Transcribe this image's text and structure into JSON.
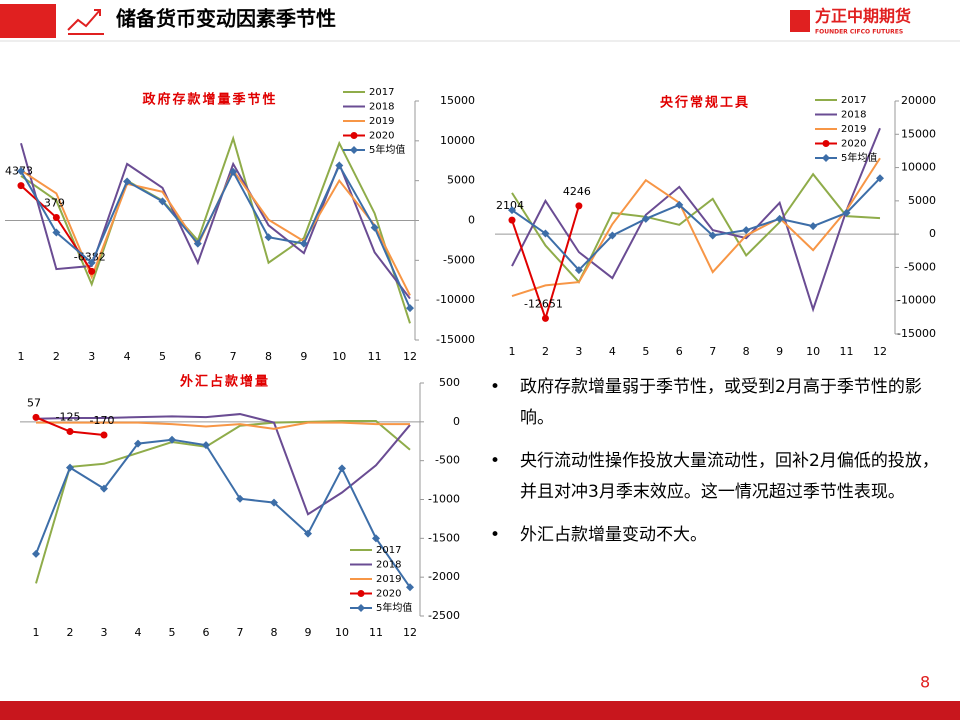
{
  "header": {
    "title": "储备货币变动因素季节性",
    "logo": "方正中期期货",
    "logo_en": "FOUNDER CIFCO FUTURES"
  },
  "bullets": [
    "政府存款增量弱于季节性，或受到2月高于季节性的影响。",
    "央行流动性操作投放大量流动性，回补2月偏低的投放，并且对冲3月季末效应。这一情况超过季节性表现。",
    "外汇占款增量变动不大。"
  ],
  "page_number": "8",
  "chart_data": [
    {
      "type": "line",
      "title": "政府存款增量季节性",
      "categories": [
        "1",
        "2",
        "3",
        "4",
        "5",
        "6",
        "7",
        "8",
        "9",
        "10",
        "11",
        "12"
      ],
      "ylim": [
        -15000,
        15000
      ],
      "yticks": [
        -15000,
        -10000,
        -5000,
        0,
        5000,
        10000,
        15000
      ],
      "legend": "upper right",
      "series": [
        {
          "name": "2017",
          "color": "#8fac4a",
          "values": [
            5600,
            2500,
            -8000,
            5000,
            2500,
            -2500,
            10300,
            -5300,
            -2200,
            9700,
            900,
            -12900
          ]
        },
        {
          "name": "2018",
          "color": "#6a4c93",
          "values": [
            9700,
            -6100,
            -5700,
            7100,
            4100,
            -5300,
            7100,
            -600,
            -4100,
            7100,
            -4000,
            -9800
          ]
        },
        {
          "name": "2019",
          "color": "#f79646",
          "values": [
            6300,
            3400,
            -7100,
            4600,
            3600,
            -3100,
            6300,
            100,
            -2600,
            5000,
            -600,
            -9400
          ]
        },
        {
          "name": "2020",
          "color": "#e00000",
          "marker": "circle",
          "data_labels": true,
          "values": [
            4373,
            379,
            -6382,
            null,
            null,
            null,
            null,
            null,
            null,
            null,
            null,
            null
          ]
        },
        {
          "name": "5年均值",
          "color": "#3d6ea8",
          "marker": "diamond",
          "values": [
            6200,
            -1500,
            -5300,
            4900,
            2400,
            -2900,
            6100,
            -2100,
            -2900,
            6900,
            -900,
            -11000
          ]
        }
      ]
    },
    {
      "type": "line",
      "title": "央行常规工具",
      "categories": [
        "1",
        "2",
        "3",
        "4",
        "5",
        "6",
        "7",
        "8",
        "9",
        "10",
        "11",
        "12"
      ],
      "ylim": [
        -15000,
        20000
      ],
      "yticks": [
        -15000,
        -10000,
        -5000,
        0,
        5000,
        10000,
        15000,
        20000
      ],
      "legend": "upper right",
      "series": [
        {
          "name": "2017",
          "color": "#8fac4a",
          "values": [
            6200,
            -1700,
            -7200,
            3200,
            2600,
            1400,
            5300,
            -3200,
            1800,
            9000,
            2700,
            2400
          ]
        },
        {
          "name": "2018",
          "color": "#6a4c93",
          "values": [
            -4800,
            5000,
            -2700,
            -6600,
            2900,
            7100,
            600,
            -600,
            4700,
            -11300,
            3600,
            15900
          ]
        },
        {
          "name": "2019",
          "color": "#f79646",
          "values": [
            -9300,
            -7700,
            -7200,
            1500,
            8100,
            4700,
            -5700,
            -200,
            2400,
            -2400,
            3600,
            11400
          ]
        },
        {
          "name": "2020",
          "color": "#e00000",
          "marker": "circle",
          "data_labels": true,
          "values": [
            2104,
            -12651,
            4246,
            null,
            null,
            null,
            null,
            null,
            null,
            null,
            null,
            null
          ]
        },
        {
          "name": "5年均值",
          "color": "#3d6ea8",
          "marker": "diamond",
          "values": [
            3600,
            100,
            -5400,
            -200,
            2300,
            4400,
            -200,
            600,
            2300,
            1200,
            3200,
            8400
          ]
        }
      ]
    },
    {
      "type": "line",
      "title": "外汇占款增量",
      "categories": [
        "1",
        "2",
        "3",
        "4",
        "5",
        "6",
        "7",
        "8",
        "9",
        "10",
        "11",
        "12"
      ],
      "ylim": [
        -2500,
        500
      ],
      "yticks": [
        -2500,
        -2000,
        -1500,
        -1000,
        -500,
        0,
        500
      ],
      "legend": "lower right",
      "series": [
        {
          "name": "2017",
          "color": "#8fac4a",
          "values": [
            -2080,
            -580,
            -540,
            -400,
            -260,
            -320,
            -50,
            -10,
            0,
            10,
            10,
            -360
          ]
        },
        {
          "name": "2018",
          "color": "#6a4c93",
          "values": [
            40,
            50,
            50,
            60,
            70,
            60,
            100,
            -10,
            -1190,
            -910,
            -560,
            -40
          ]
        },
        {
          "name": "2019",
          "color": "#f79646",
          "values": [
            -10,
            -10,
            -10,
            -10,
            -30,
            -60,
            -30,
            -90,
            -10,
            -10,
            -30,
            -30
          ]
        },
        {
          "name": "2020",
          "color": "#e00000",
          "marker": "circle",
          "data_labels": true,
          "values": [
            57,
            -125,
            -170,
            null,
            null,
            null,
            null,
            null,
            null,
            null,
            null,
            null
          ]
        },
        {
          "name": "5年均值",
          "color": "#3d6ea8",
          "marker": "diamond",
          "values": [
            -1700,
            -590,
            -860,
            -280,
            -230,
            -300,
            -990,
            -1040,
            -1440,
            -600,
            -1500,
            -2130
          ]
        }
      ]
    }
  ]
}
